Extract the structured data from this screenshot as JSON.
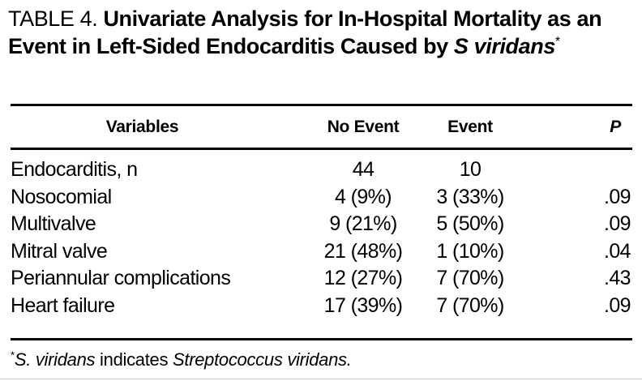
{
  "page": {
    "background": "#ffffff",
    "text_color": "#000000",
    "rule_color": "#000000"
  },
  "title": {
    "prefix": "TABLE 4. ",
    "main": "Univariate Analysis for In-Hospital Mortality as an Event in Left-Sided Endocarditis Caused by ",
    "species": "S viridans",
    "footnote_marker": "*"
  },
  "table": {
    "columns": {
      "variables": "Variables",
      "no_event": "No Event",
      "event": "Event",
      "p": "P"
    },
    "rows": [
      {
        "variable": "Endocarditis, n",
        "no_event": "44",
        "event": "10",
        "p": ""
      },
      {
        "variable": "Nosocomial",
        "no_event": "4 (9%)",
        "event": "3 (33%)",
        "p": ".09"
      },
      {
        "variable": "Multivalve",
        "no_event": "9 (21%)",
        "event": "5 (50%)",
        "p": ".09"
      },
      {
        "variable": "Mitral valve",
        "no_event": "21 (48%)",
        "event": "1 (10%)",
        "p": ".04"
      },
      {
        "variable": "Periannular complications",
        "no_event": "12 (27%)",
        "event": "7 (70%)",
        "p": ".43"
      },
      {
        "variable": "Heart failure",
        "no_event": "17 (39%)",
        "event": "7 (70%)",
        "p": ".09"
      }
    ]
  },
  "footnote": {
    "marker": "*",
    "term": "S. viridans",
    "connector": " indicates ",
    "definition": "Streptococcus viridans."
  }
}
